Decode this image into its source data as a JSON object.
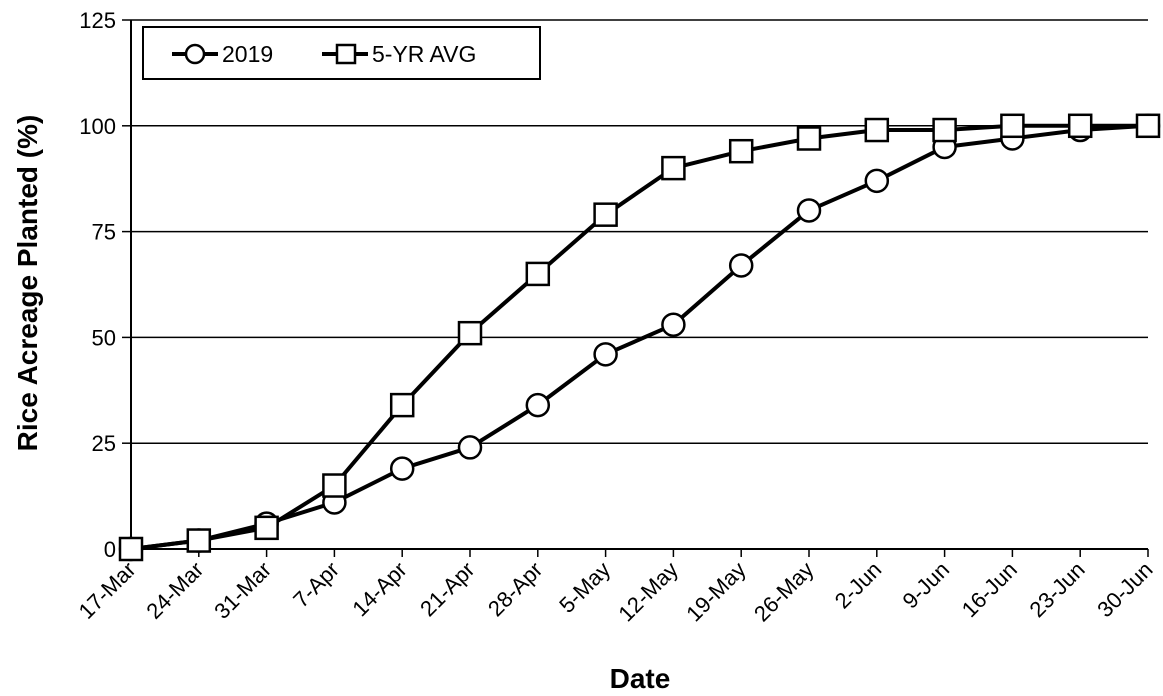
{
  "chart_data": {
    "type": "line",
    "xlabel": "Date",
    "ylabel": "Rice Acreage Planted (%)",
    "categories": [
      "17-Mar",
      "24-Mar",
      "31-Mar",
      "7-Apr",
      "14-Apr",
      "21-Apr",
      "28-Apr",
      "5-May",
      "12-May",
      "19-May",
      "26-May",
      "2-Jun",
      "9-Jun",
      "16-Jun",
      "23-Jun",
      "30-Jun"
    ],
    "ylim": [
      0,
      125
    ],
    "yticks": [
      0,
      25,
      50,
      75,
      100,
      125
    ],
    "grid": "horizontal",
    "legend_position": "top-left",
    "series": [
      {
        "name": "2019",
        "marker": "circle",
        "color": "#000000",
        "values": [
          0,
          2,
          6,
          11,
          19,
          24,
          34,
          46,
          53,
          67,
          80,
          87,
          95,
          97,
          99,
          100
        ]
      },
      {
        "name": "5-YR AVG",
        "marker": "square",
        "color": "#000000",
        "values": [
          0,
          2,
          5,
          15,
          34,
          51,
          65,
          79,
          90,
          94,
          97,
          99,
          99,
          100,
          100,
          100
        ]
      }
    ]
  }
}
